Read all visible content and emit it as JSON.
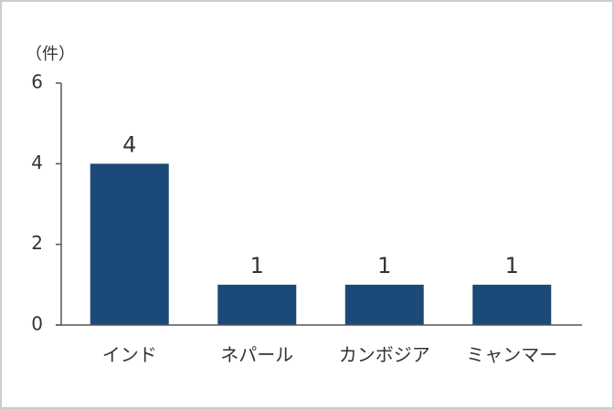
{
  "chart_data": {
    "type": "bar",
    "y_axis_label": "（件）",
    "categories": [
      "インド",
      "ネパール",
      "カンボジア",
      "ミャンマー"
    ],
    "values": [
      4,
      1,
      1,
      1
    ],
    "color": "#1b4a78",
    "ylim": [
      0,
      6
    ],
    "yticks": [
      0,
      2,
      4,
      6
    ],
    "grid": false
  }
}
